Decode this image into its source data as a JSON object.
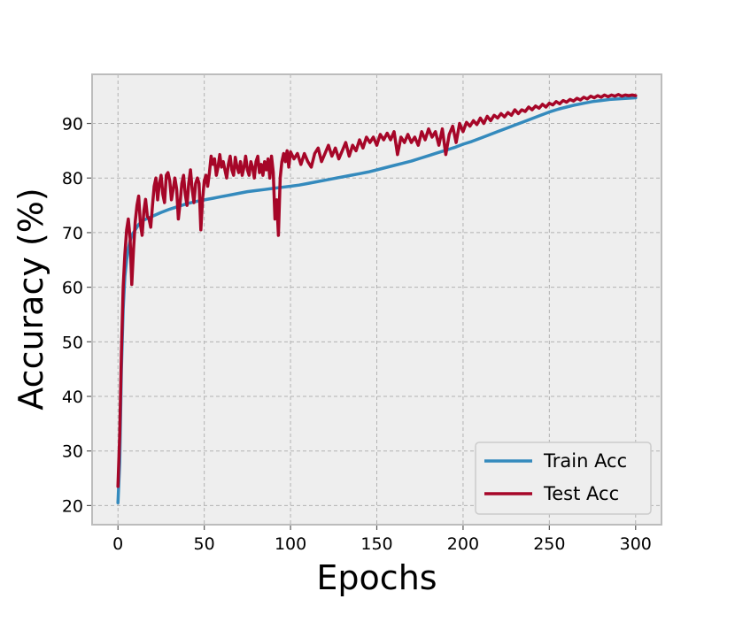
{
  "chart_data": {
    "type": "line",
    "title": "",
    "xlabel": "Epochs",
    "ylabel": "Accuracy (%)",
    "xlim": [
      -15,
      315
    ],
    "ylim": [
      16.5,
      99
    ],
    "xticks": [
      "0",
      "50",
      "100",
      "150",
      "200",
      "250",
      "300"
    ],
    "yticks": [
      "20",
      "30",
      "40",
      "50",
      "60",
      "70",
      "80",
      "90"
    ],
    "grid": true,
    "legend_position": "lower-right",
    "series": [
      {
        "name": "Train Acc",
        "color": "#348ABD",
        "points": [
          [
            0,
            20.5
          ],
          [
            1,
            28
          ],
          [
            2,
            45
          ],
          [
            3,
            56
          ],
          [
            4,
            62
          ],
          [
            5,
            65
          ],
          [
            6,
            67
          ],
          [
            7,
            68.5
          ],
          [
            8,
            69.5
          ],
          [
            10,
            70.5
          ],
          [
            12,
            71.5
          ],
          [
            15,
            72.3
          ],
          [
            20,
            73
          ],
          [
            25,
            73.7
          ],
          [
            30,
            74.3
          ],
          [
            35,
            74.8
          ],
          [
            40,
            75.3
          ],
          [
            45,
            75.7
          ],
          [
            50,
            76
          ],
          [
            55,
            76.3
          ],
          [
            60,
            76.6
          ],
          [
            65,
            76.9
          ],
          [
            70,
            77.2
          ],
          [
            75,
            77.5
          ],
          [
            80,
            77.7
          ],
          [
            85,
            77.9
          ],
          [
            90,
            78.1
          ],
          [
            95,
            78.3
          ],
          [
            100,
            78.5
          ],
          [
            105,
            78.7
          ],
          [
            110,
            79
          ],
          [
            115,
            79.3
          ],
          [
            120,
            79.6
          ],
          [
            125,
            79.9
          ],
          [
            130,
            80.2
          ],
          [
            135,
            80.5
          ],
          [
            140,
            80.8
          ],
          [
            145,
            81.1
          ],
          [
            150,
            81.5
          ],
          [
            155,
            81.9
          ],
          [
            160,
            82.3
          ],
          [
            165,
            82.7
          ],
          [
            170,
            83.1
          ],
          [
            175,
            83.6
          ],
          [
            180,
            84.1
          ],
          [
            185,
            84.6
          ],
          [
            190,
            85.1
          ],
          [
            195,
            85.6
          ],
          [
            200,
            86.2
          ],
          [
            205,
            86.7
          ],
          [
            210,
            87.3
          ],
          [
            215,
            87.9
          ],
          [
            220,
            88.5
          ],
          [
            225,
            89.1
          ],
          [
            230,
            89.7
          ],
          [
            235,
            90.3
          ],
          [
            240,
            90.9
          ],
          [
            245,
            91.5
          ],
          [
            250,
            92.1
          ],
          [
            255,
            92.6
          ],
          [
            260,
            93
          ],
          [
            265,
            93.4
          ],
          [
            270,
            93.7
          ],
          [
            275,
            94
          ],
          [
            280,
            94.2
          ],
          [
            285,
            94.4
          ],
          [
            290,
            94.5
          ],
          [
            295,
            94.6
          ],
          [
            300,
            94.7
          ]
        ]
      },
      {
        "name": "Test Acc",
        "color": "#A60628",
        "points": [
          [
            0,
            23.5
          ],
          [
            1,
            33
          ],
          [
            2,
            48
          ],
          [
            3,
            60
          ],
          [
            4,
            66
          ],
          [
            5,
            70.5
          ],
          [
            6,
            72.5
          ],
          [
            7,
            69
          ],
          [
            8,
            60.5
          ],
          [
            9,
            67
          ],
          [
            10,
            72
          ],
          [
            11,
            75
          ],
          [
            12,
            76.7
          ],
          [
            13,
            71.5
          ],
          [
            14,
            69.5
          ],
          [
            15,
            74
          ],
          [
            16,
            76.1
          ],
          [
            17,
            73
          ],
          [
            18,
            72.5
          ],
          [
            19,
            71
          ],
          [
            20,
            75
          ],
          [
            21,
            78.5
          ],
          [
            22,
            80
          ],
          [
            23,
            76
          ],
          [
            24,
            79
          ],
          [
            25,
            80.5
          ],
          [
            26,
            77
          ],
          [
            27,
            75.5
          ],
          [
            28,
            80.5
          ],
          [
            29,
            81
          ],
          [
            30,
            79.5
          ],
          [
            31,
            76
          ],
          [
            32,
            78
          ],
          [
            33,
            80
          ],
          [
            34,
            78
          ],
          [
            35,
            72.5
          ],
          [
            36,
            75.5
          ],
          [
            37,
            79
          ],
          [
            38,
            80.5
          ],
          [
            39,
            77
          ],
          [
            40,
            75
          ],
          [
            41,
            79
          ],
          [
            42,
            81.5
          ],
          [
            43,
            78
          ],
          [
            44,
            75.5
          ],
          [
            45,
            79
          ],
          [
            46,
            80
          ],
          [
            47,
            79
          ],
          [
            48,
            70.5
          ],
          [
            49,
            76
          ],
          [
            50,
            79.5
          ],
          [
            51,
            80.5
          ],
          [
            52,
            78.5
          ],
          [
            53,
            81
          ],
          [
            54,
            84
          ],
          [
            55,
            82.5
          ],
          [
            56,
            83.5
          ],
          [
            57,
            80.5
          ],
          [
            58,
            82
          ],
          [
            59,
            84.3
          ],
          [
            60,
            82
          ],
          [
            61,
            83
          ],
          [
            62,
            81.5
          ],
          [
            63,
            80
          ],
          [
            64,
            82.5
          ],
          [
            65,
            84
          ],
          [
            66,
            81.5
          ],
          [
            67,
            80.5
          ],
          [
            68,
            83.8
          ],
          [
            69,
            82
          ],
          [
            70,
            81
          ],
          [
            71,
            83
          ],
          [
            72,
            80.5
          ],
          [
            73,
            82
          ],
          [
            74,
            84
          ],
          [
            75,
            81.5
          ],
          [
            76,
            80.5
          ],
          [
            77,
            83
          ],
          [
            78,
            82
          ],
          [
            79,
            80
          ],
          [
            80,
            83
          ],
          [
            81,
            84
          ],
          [
            82,
            81
          ],
          [
            83,
            82.5
          ],
          [
            84,
            80.5
          ],
          [
            85,
            83
          ],
          [
            86,
            81.5
          ],
          [
            87,
            83.5
          ],
          [
            88,
            80
          ],
          [
            89,
            84
          ],
          [
            90,
            81
          ],
          [
            91,
            72.5
          ],
          [
            92,
            76
          ],
          [
            93,
            69.5
          ],
          [
            94,
            80
          ],
          [
            95,
            83
          ],
          [
            96,
            84.5
          ],
          [
            97,
            83
          ],
          [
            98,
            85
          ],
          [
            99,
            82
          ],
          [
            100,
            84.8
          ],
          [
            102,
            83.5
          ],
          [
            104,
            84.5
          ],
          [
            106,
            82.5
          ],
          [
            108,
            84.5
          ],
          [
            110,
            83
          ],
          [
            112,
            82
          ],
          [
            114,
            84.5
          ],
          [
            116,
            85.5
          ],
          [
            118,
            83
          ],
          [
            120,
            84.5
          ],
          [
            122,
            86
          ],
          [
            124,
            84
          ],
          [
            126,
            85.5
          ],
          [
            128,
            83.5
          ],
          [
            130,
            85
          ],
          [
            132,
            86.5
          ],
          [
            134,
            84
          ],
          [
            136,
            86
          ],
          [
            138,
            85
          ],
          [
            140,
            87
          ],
          [
            142,
            85.5
          ],
          [
            144,
            87.5
          ],
          [
            146,
            86.5
          ],
          [
            148,
            87.5
          ],
          [
            150,
            86
          ],
          [
            152,
            88
          ],
          [
            154,
            87
          ],
          [
            156,
            88.2
          ],
          [
            158,
            87
          ],
          [
            160,
            88.5
          ],
          [
            162,
            84.3
          ],
          [
            164,
            87.5
          ],
          [
            166,
            86.5
          ],
          [
            168,
            88
          ],
          [
            170,
            86.5
          ],
          [
            172,
            87.5
          ],
          [
            174,
            86
          ],
          [
            176,
            88.5
          ],
          [
            178,
            87
          ],
          [
            180,
            89
          ],
          [
            182,
            87.5
          ],
          [
            184,
            88.5
          ],
          [
            186,
            86
          ],
          [
            188,
            89
          ],
          [
            190,
            84.3
          ],
          [
            192,
            88
          ],
          [
            194,
            89.5
          ],
          [
            196,
            86.5
          ],
          [
            198,
            90
          ],
          [
            200,
            88.5
          ],
          [
            202,
            90.2
          ],
          [
            204,
            89.5
          ],
          [
            206,
            90.5
          ],
          [
            208,
            89.8
          ],
          [
            210,
            91
          ],
          [
            212,
            90
          ],
          [
            214,
            91.3
          ],
          [
            216,
            90.5
          ],
          [
            218,
            91.5
          ],
          [
            220,
            91
          ],
          [
            222,
            91.8
          ],
          [
            224,
            91.2
          ],
          [
            226,
            92
          ],
          [
            228,
            91.5
          ],
          [
            230,
            92.5
          ],
          [
            232,
            91.8
          ],
          [
            234,
            92.5
          ],
          [
            236,
            92.2
          ],
          [
            238,
            93
          ],
          [
            240,
            92.5
          ],
          [
            242,
            93.2
          ],
          [
            244,
            92.8
          ],
          [
            246,
            93.5
          ],
          [
            248,
            93
          ],
          [
            250,
            93.7
          ],
          [
            252,
            93.4
          ],
          [
            254,
            94
          ],
          [
            256,
            93.6
          ],
          [
            258,
            94.2
          ],
          [
            260,
            93.9
          ],
          [
            262,
            94.4
          ],
          [
            264,
            94.1
          ],
          [
            266,
            94.6
          ],
          [
            268,
            94.3
          ],
          [
            270,
            94.8
          ],
          [
            272,
            94.5
          ],
          [
            274,
            95
          ],
          [
            276,
            94.7
          ],
          [
            278,
            95.1
          ],
          [
            280,
            94.8
          ],
          [
            282,
            95.2
          ],
          [
            284,
            94.9
          ],
          [
            286,
            95.2
          ],
          [
            288,
            95
          ],
          [
            290,
            95.3
          ],
          [
            292,
            95
          ],
          [
            294,
            95.2
          ],
          [
            296,
            95.1
          ],
          [
            298,
            95.2
          ],
          [
            300,
            95.1
          ]
        ]
      }
    ]
  }
}
